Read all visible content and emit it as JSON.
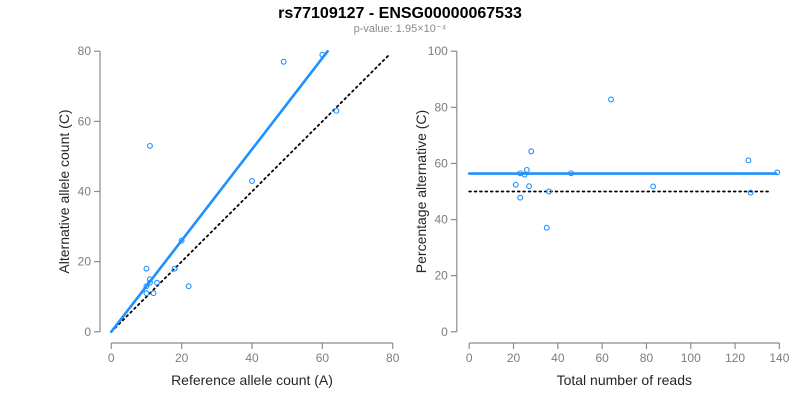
{
  "header": {
    "title": "rs77109127 - ENSG00000067533",
    "subtitle": "p-value: 1.95×10⁻⁴"
  },
  "style": {
    "accent_blue": "#1E90FF",
    "reference_black": "#000000",
    "axis_line_gray": "#8c8c8c",
    "tick_label_gray": "#7d7d7d",
    "axis_title_color": "#262626",
    "background": "#ffffff"
  },
  "chart_data": [
    {
      "type": "scatter",
      "panel": "left",
      "xlabel": "Reference allele count (A)",
      "ylabel": "Alternative allele count (C)",
      "xlim": [
        0,
        80
      ],
      "ylim": [
        0,
        80
      ],
      "xticks": [
        0,
        20,
        40,
        60,
        80
      ],
      "yticks": [
        0,
        20,
        40,
        60,
        80
      ],
      "grid": false,
      "legend": null,
      "marker": "open-circle",
      "points": [
        [
          10,
          18
        ],
        [
          18,
          18
        ],
        [
          11,
          15
        ],
        [
          13,
          14
        ],
        [
          11,
          14
        ],
        [
          10,
          13
        ],
        [
          10,
          11
        ],
        [
          12,
          11
        ],
        [
          22,
          13
        ],
        [
          20,
          26
        ],
        [
          40,
          43
        ],
        [
          11,
          53
        ],
        [
          49,
          77
        ],
        [
          60,
          79
        ],
        [
          64,
          63
        ]
      ],
      "fit_line": {
        "x1": 0,
        "y1": 0,
        "x2": 61.5,
        "y2": 80,
        "style": "solid"
      },
      "reference_line": {
        "x1": 0,
        "y1": 0,
        "x2": 79,
        "y2": 79,
        "style": "dotted"
      }
    },
    {
      "type": "scatter",
      "panel": "right",
      "xlabel": "Total number of reads",
      "ylabel": "Percentage alternative (C)",
      "xlim": [
        0,
        140
      ],
      "ylim": [
        0,
        100
      ],
      "xticks": [
        0,
        20,
        40,
        60,
        80,
        100,
        120,
        140
      ],
      "yticks": [
        0,
        20,
        40,
        60,
        80,
        100
      ],
      "grid": false,
      "legend": null,
      "marker": "open-circle",
      "points": [
        [
          28,
          64.3
        ],
        [
          36,
          50.0
        ],
        [
          26,
          57.7
        ],
        [
          27,
          51.9
        ],
        [
          25,
          56.0
        ],
        [
          23,
          56.5
        ],
        [
          21,
          52.4
        ],
        [
          23,
          47.8
        ],
        [
          35,
          37.1
        ],
        [
          46,
          56.5
        ],
        [
          83,
          51.8
        ],
        [
          64,
          82.8
        ],
        [
          126,
          61.1
        ],
        [
          139,
          56.8
        ],
        [
          127,
          49.6
        ]
      ],
      "fit_line": {
        "x1": 0,
        "y1": 56.4,
        "x2": 138.5,
        "y2": 56.4,
        "style": "solid"
      },
      "reference_line": {
        "x1": 0,
        "y1": 50,
        "x2": 135,
        "y2": 50,
        "style": "dotted"
      }
    }
  ]
}
